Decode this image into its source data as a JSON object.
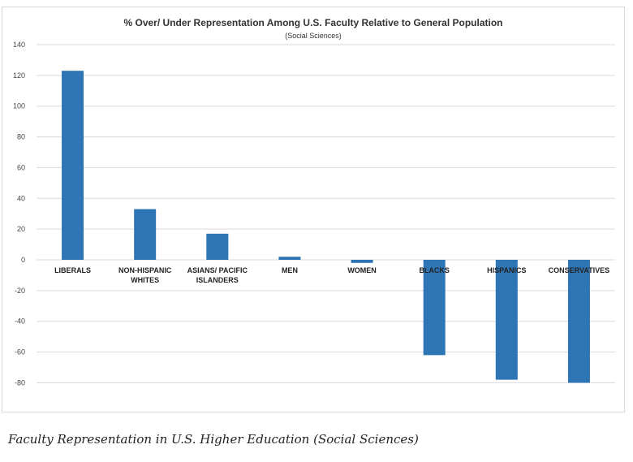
{
  "chart_data": {
    "type": "bar",
    "title": "% Over/ Under Representation Among U.S. Faculty Relative to General Population",
    "subtitle": "(Social Sciences)",
    "categories": [
      [
        "LIBERALS"
      ],
      [
        "NON-HISPANIC",
        "WHITES"
      ],
      [
        "ASIANS/ PACIFIC",
        "ISLANDERS"
      ],
      [
        "MEN"
      ],
      [
        "WOMEN"
      ],
      [
        "BLACKS"
      ],
      [
        "HISPANICS"
      ],
      [
        "CONSERVATIVES"
      ]
    ],
    "values": [
      123,
      33,
      17,
      2,
      -2,
      -62,
      -78,
      -80
    ],
    "ylim": [
      -90,
      140
    ],
    "yticks": [
      140,
      120,
      100,
      80,
      60,
      40,
      20,
      0,
      -20,
      -40,
      -60,
      -80
    ],
    "xlabel": "",
    "ylabel": "",
    "grid": true,
    "bar_color": "#2e75b6"
  },
  "caption": "Faculty Representation in U.S. Higher Education (Social Sciences)"
}
